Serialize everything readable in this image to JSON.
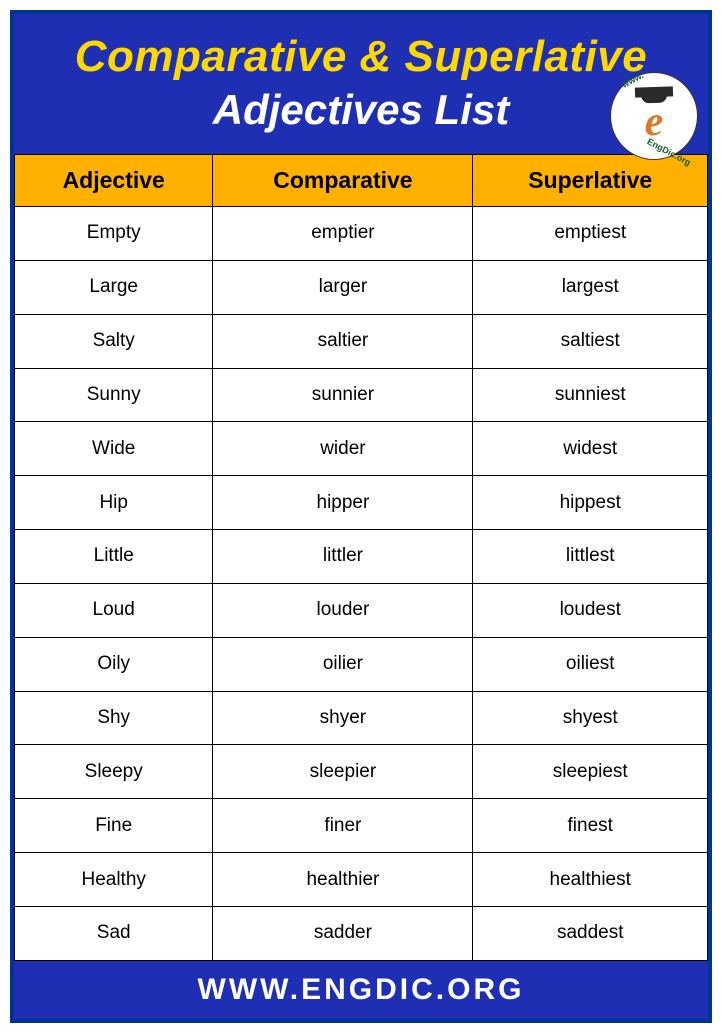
{
  "header": {
    "title_line1": "Comparative & Superlative",
    "title_line2": "Adjectives List",
    "title_line1_color": "#ffd800",
    "title_line2_color": "#ffffff",
    "background_color": "#1e2fb3",
    "title_fontsize": 44
  },
  "logo": {
    "letter": "e",
    "text_top": "www.",
    "text_bottom": "EngDic.org",
    "letter_color": "#e07828",
    "text_color": "#155c2e",
    "background_color": "#ffffff"
  },
  "table": {
    "type": "table",
    "header_background": "#ffb000",
    "header_text_color": "#000000",
    "cell_background": "#ffffff",
    "cell_text_color": "#000000",
    "border_color": "#000000",
    "header_fontsize": 23,
    "cell_fontsize": 19,
    "columns": [
      "Adjective",
      "Comparative",
      "Superlative"
    ],
    "rows": [
      [
        "Empty",
        "emptier",
        "emptiest"
      ],
      [
        "Large",
        "larger",
        "largest"
      ],
      [
        "Salty",
        "saltier",
        "saltiest"
      ],
      [
        "Sunny",
        "sunnier",
        "sunniest"
      ],
      [
        "Wide",
        "wider",
        "widest"
      ],
      [
        "Hip",
        "hipper",
        "hippest"
      ],
      [
        "Little",
        "littler",
        "littlest"
      ],
      [
        "Loud",
        "louder",
        "loudest"
      ],
      [
        "Oily",
        "oilier",
        "oiliest"
      ],
      [
        "Shy",
        "shyer",
        "shyest"
      ],
      [
        "Sleepy",
        "sleepier",
        "sleepiest"
      ],
      [
        "Fine",
        "finer",
        "finest"
      ],
      [
        "Healthy",
        "healthier",
        "healthiest"
      ],
      [
        "Sad",
        "sadder",
        "saddest"
      ]
    ]
  },
  "footer": {
    "text": "WWW.ENGDIC.ORG",
    "background_color": "#1e2fb3",
    "text_color": "#ffffff",
    "fontsize": 30
  },
  "frame": {
    "border_color": "#003399",
    "border_width": 4
  }
}
